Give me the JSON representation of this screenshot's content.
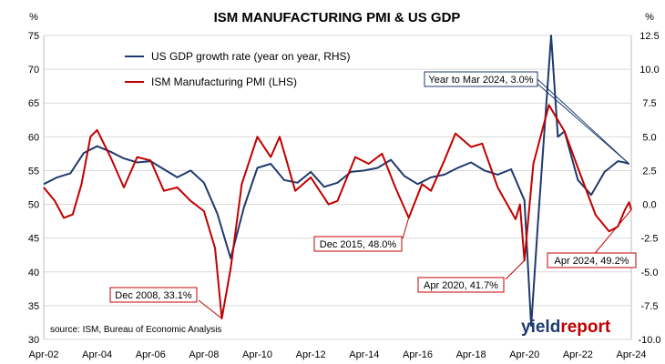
{
  "chart_data": {
    "type": "line",
    "title": "ISM MANUFACTURING PMI & US GDP",
    "y_left_unit": "%",
    "y_right_unit": "%",
    "ylim_left": [
      30,
      75
    ],
    "ylim_right": [
      -10,
      12.5
    ],
    "left_ticks": [
      "75",
      "70",
      "65",
      "60",
      "55",
      "50",
      "45",
      "40",
      "35",
      "30"
    ],
    "right_ticks": [
      "12.5",
      "10.0",
      "7.5",
      "5.0",
      "2.5",
      "0.0",
      "-2.5",
      "-5.0",
      "-7.5",
      "-10.0"
    ],
    "x_ticks": [
      "Apr-02",
      "Apr-04",
      "Apr-06",
      "Apr-08",
      "Apr-10",
      "Apr-12",
      "Apr-14",
      "Apr-16",
      "Apr-18",
      "Apr-20",
      "Apr-22",
      "Apr-24"
    ],
    "x_range": [
      "Apr-02",
      "Apr-24"
    ],
    "grid": "horizontal",
    "legend_position": "top-left",
    "series": [
      {
        "name": "US GDP growth rate (year on year, RHS)",
        "axis": "right",
        "color": "#1f3a6e",
        "points": [
          [
            "Apr-02",
            1.5
          ],
          [
            "Oct-02",
            2.0
          ],
          [
            "Apr-03",
            2.3
          ],
          [
            "Oct-03",
            3.8
          ],
          [
            "Apr-04",
            4.3
          ],
          [
            "Oct-04",
            3.9
          ],
          [
            "Apr-05",
            3.4
          ],
          [
            "Oct-05",
            3.1
          ],
          [
            "Apr-06",
            3.2
          ],
          [
            "Oct-06",
            2.6
          ],
          [
            "Apr-07",
            2.0
          ],
          [
            "Oct-07",
            2.5
          ],
          [
            "Apr-08",
            1.6
          ],
          [
            "Oct-08",
            -0.7
          ],
          [
            "Apr-09",
            -4.0
          ],
          [
            "Oct-09",
            -0.2
          ],
          [
            "Apr-10",
            2.7
          ],
          [
            "Oct-10",
            3.0
          ],
          [
            "Apr-11",
            1.8
          ],
          [
            "Oct-11",
            1.6
          ],
          [
            "Apr-12",
            2.4
          ],
          [
            "Oct-12",
            1.3
          ],
          [
            "Apr-13",
            1.6
          ],
          [
            "Oct-13",
            2.4
          ],
          [
            "Apr-14",
            2.5
          ],
          [
            "Oct-14",
            2.7
          ],
          [
            "Apr-15",
            3.3
          ],
          [
            "Oct-15",
            2.1
          ],
          [
            "Apr-16",
            1.5
          ],
          [
            "Oct-16",
            2.0
          ],
          [
            "Apr-17",
            2.2
          ],
          [
            "Oct-17",
            2.7
          ],
          [
            "Apr-18",
            3.1
          ],
          [
            "Oct-18",
            2.5
          ],
          [
            "Apr-19",
            2.2
          ],
          [
            "Oct-19",
            2.6
          ],
          [
            "Apr-20",
            0.3
          ],
          [
            "Jul-20",
            -9.0
          ],
          [
            "Oct-20",
            -1.5
          ],
          [
            "Apr-21",
            12.5
          ],
          [
            "Jul-21",
            5.0
          ],
          [
            "Oct-21",
            5.4
          ],
          [
            "Apr-22",
            1.8
          ],
          [
            "Oct-22",
            0.7
          ],
          [
            "Apr-23",
            2.4
          ],
          [
            "Oct-23",
            3.2
          ],
          [
            "Jan-24",
            3.1
          ],
          [
            "Mar-24",
            3.0
          ]
        ]
      },
      {
        "name": "ISM Manufacturing PMI (LHS)",
        "axis": "left",
        "color": "#c00000",
        "points": [
          [
            "Apr-02",
            52.5
          ],
          [
            "Sep-02",
            50.5
          ],
          [
            "Jan-03",
            48.0
          ],
          [
            "May-03",
            48.5
          ],
          [
            "Sep-03",
            53.0
          ],
          [
            "Jan-04",
            60.0
          ],
          [
            "Apr-04",
            61.0
          ],
          [
            "Oct-04",
            57.0
          ],
          [
            "Apr-05",
            52.5
          ],
          [
            "Oct-05",
            57.0
          ],
          [
            "Apr-06",
            56.5
          ],
          [
            "Oct-06",
            52.0
          ],
          [
            "Apr-07",
            52.5
          ],
          [
            "Oct-07",
            50.5
          ],
          [
            "Apr-08",
            49.0
          ],
          [
            "Sep-08",
            43.5
          ],
          [
            "Dec-08",
            33.1
          ],
          [
            "Apr-09",
            40.5
          ],
          [
            "Sep-09",
            53.0
          ],
          [
            "Apr-10",
            60.0
          ],
          [
            "Oct-10",
            57.0
          ],
          [
            "Feb-11",
            60.0
          ],
          [
            "Sep-11",
            52.0
          ],
          [
            "Apr-12",
            54.0
          ],
          [
            "Dec-12",
            50.0
          ],
          [
            "Apr-13",
            50.5
          ],
          [
            "Dec-13",
            57.0
          ],
          [
            "Jun-14",
            56.0
          ],
          [
            "Dec-14",
            57.5
          ],
          [
            "Jun-15",
            52.5
          ],
          [
            "Dec-15",
            48.0
          ],
          [
            "Jun-16",
            53.0
          ],
          [
            "Oct-16",
            52.0
          ],
          [
            "Apr-17",
            56.5
          ],
          [
            "Sep-17",
            60.5
          ],
          [
            "Apr-18",
            58.5
          ],
          [
            "Sep-18",
            59.0
          ],
          [
            "Apr-19",
            52.5
          ],
          [
            "Dec-19",
            47.8
          ],
          [
            "Feb-20",
            50.0
          ],
          [
            "Apr-20",
            41.7
          ],
          [
            "Aug-20",
            56.0
          ],
          [
            "Mar-21",
            64.7
          ],
          [
            "Oct-21",
            60.8
          ],
          [
            "Apr-22",
            55.4
          ],
          [
            "Dec-22",
            48.4
          ],
          [
            "Jun-23",
            46.0
          ],
          [
            "Oct-23",
            46.7
          ],
          [
            "Jan-24",
            49.1
          ],
          [
            "Mar-24",
            50.3
          ],
          [
            "Apr-24",
            49.2
          ]
        ]
      }
    ],
    "annotations": [
      {
        "label": "Dec 2008, 33.1%",
        "x": "Dec-08",
        "value": 33.1,
        "axis": "left"
      },
      {
        "label": "Dec 2015, 48.0%",
        "x": "Dec-15",
        "value": 48.0,
        "axis": "left"
      },
      {
        "label": "Apr 2020, 41.7%",
        "x": "Apr-20",
        "value": 41.7,
        "axis": "left"
      },
      {
        "label": "Apr 2024, 49.2%",
        "x": "Apr-24",
        "value": 49.2,
        "axis": "left"
      },
      {
        "label": "Year to Mar 2024, 3.0%",
        "x": "Mar-24",
        "value": 3.0,
        "axis": "right"
      }
    ],
    "source": "source: ISM, Bureau of Economic Analysis",
    "logo": {
      "text": "yieldreport",
      "colors": [
        "#1f3a6e",
        "#c00000"
      ]
    }
  }
}
